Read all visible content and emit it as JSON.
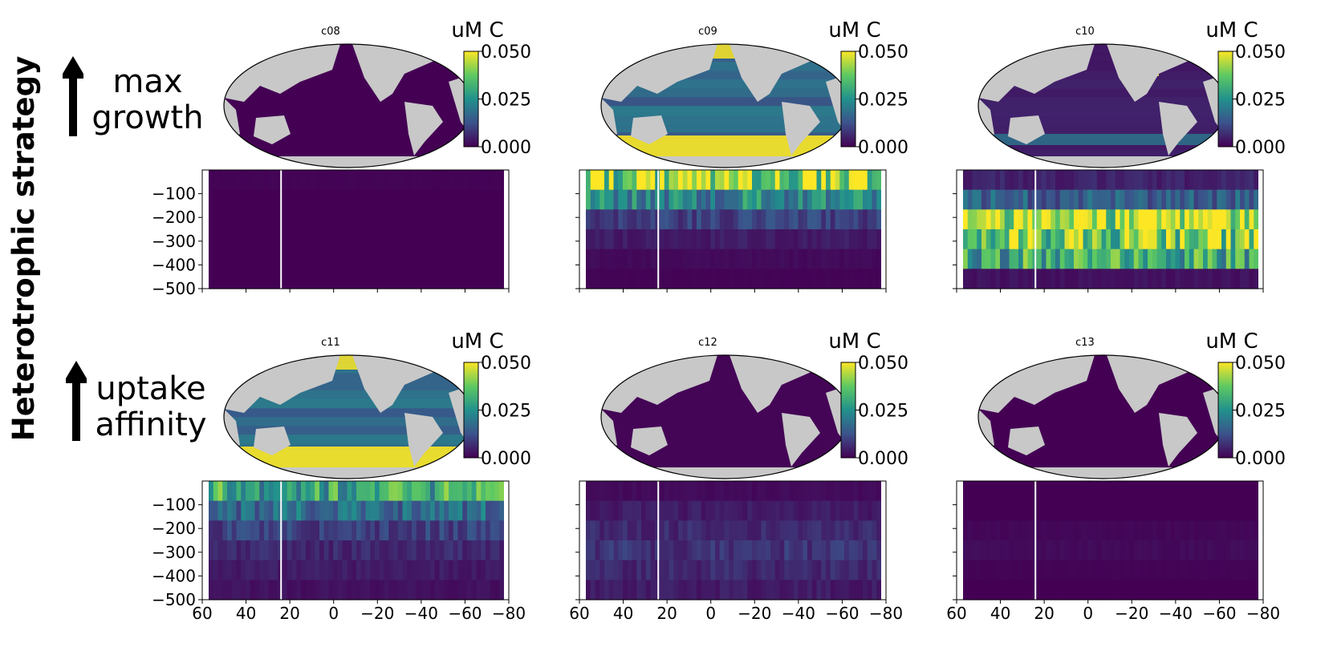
{
  "figure": {
    "y_label": "Heterotrophic strategy",
    "row_labels": [
      {
        "line1": "max",
        "line2": "growth"
      },
      {
        "line1": "uptake",
        "line2": "affinity"
      }
    ]
  },
  "colors": {
    "land": "#c8c8c8",
    "low": "#440154",
    "mid": "#21918c",
    "high": "#fde725"
  },
  "chart_data": [
    {
      "type": "heatmap",
      "title": "c08",
      "colorbar_label": "uM C",
      "colorbar_ticks": [
        "0.050",
        "0.025",
        "0.000"
      ],
      "clim": [
        0,
        0.05
      ],
      "map_surface_level": 0.0,
      "section": {
        "xlabel": "",
        "ylabel": "",
        "xlim": [
          60,
          -80
        ],
        "ylim": [
          -500,
          0
        ],
        "yticks": [
          "−100",
          "−200",
          "−300",
          "−400",
          "−500"
        ],
        "xticks": [],
        "ice_line_lat": 24,
        "profile_by_depth": [
          0.01,
          0.0,
          0.0,
          0.0,
          0.0,
          0.0
        ]
      }
    },
    {
      "type": "heatmap",
      "title": "c09",
      "colorbar_label": "uM C",
      "colorbar_ticks": [
        "0.050",
        "0.025",
        "0.000"
      ],
      "clim": [
        0,
        0.05
      ],
      "map_surface_level": 0.6,
      "section": {
        "xlabel": "",
        "ylabel": "",
        "xlim": [
          60,
          -80
        ],
        "ylim": [
          -500,
          0
        ],
        "yticks": [],
        "xticks": [],
        "ice_line_lat": 24,
        "profile_by_depth": [
          0.85,
          0.45,
          0.2,
          0.08,
          0.03,
          0.01
        ]
      }
    },
    {
      "type": "heatmap",
      "title": "c10",
      "colorbar_label": "uM C",
      "colorbar_ticks": [
        "0.050",
        "0.025",
        "0.000"
      ],
      "clim": [
        0,
        0.05
      ],
      "map_surface_level": 0.15,
      "section": {
        "xlabel": "",
        "ylabel": "",
        "xlim": [
          60,
          -80
        ],
        "ylim": [
          -500,
          0
        ],
        "yticks": [],
        "xticks": [],
        "ice_line_lat": 24,
        "profile_by_depth": [
          0.1,
          0.3,
          0.95,
          0.85,
          0.6,
          0.05
        ]
      }
    },
    {
      "type": "heatmap",
      "title": "c11",
      "colorbar_label": "uM C",
      "colorbar_ticks": [
        "0.050",
        "0.025",
        "0.000"
      ],
      "clim": [
        0,
        0.05
      ],
      "map_surface_level": 0.6,
      "section": {
        "xlabel": "",
        "ylabel": "",
        "xlim": [
          60,
          -80
        ],
        "ylim": [
          -500,
          0
        ],
        "yticks": [
          "−100",
          "−200",
          "−300",
          "−400",
          "−500"
        ],
        "xticks": [
          "60",
          "40",
          "20",
          "0",
          "−20",
          "−40",
          "−60",
          "−80"
        ],
        "ice_line_lat": 24,
        "profile_by_depth": [
          0.6,
          0.35,
          0.2,
          0.12,
          0.08,
          0.05
        ]
      }
    },
    {
      "type": "heatmap",
      "title": "c12",
      "colorbar_label": "uM C",
      "colorbar_ticks": [
        "0.050",
        "0.025",
        "0.000"
      ],
      "clim": [
        0,
        0.05
      ],
      "map_surface_level": 0.02,
      "section": {
        "xlabel": "",
        "ylabel": "",
        "xlim": [
          60,
          -80
        ],
        "ylim": [
          -500,
          0
        ],
        "yticks": [],
        "xticks": [
          "60",
          "40",
          "20",
          "0",
          "−20",
          "−40",
          "−60",
          "−80"
        ],
        "ice_line_lat": 24,
        "profile_by_depth": [
          0.03,
          0.08,
          0.12,
          0.15,
          0.12,
          0.08
        ]
      }
    },
    {
      "type": "heatmap",
      "title": "c13",
      "colorbar_label": "uM C",
      "colorbar_ticks": [
        "0.050",
        "0.025",
        "0.000"
      ],
      "clim": [
        0,
        0.05
      ],
      "map_surface_level": 0.0,
      "section": {
        "xlabel": "",
        "ylabel": "",
        "xlim": [
          60,
          -80
        ],
        "ylim": [
          -500,
          0
        ],
        "yticks": [],
        "xticks": [
          "60",
          "40",
          "20",
          "0",
          "−20",
          "−40",
          "−60",
          "−80"
        ],
        "ice_line_lat": 24,
        "profile_by_depth": [
          0.0,
          0.0,
          0.02,
          0.03,
          0.01,
          0.0
        ]
      }
    }
  ]
}
